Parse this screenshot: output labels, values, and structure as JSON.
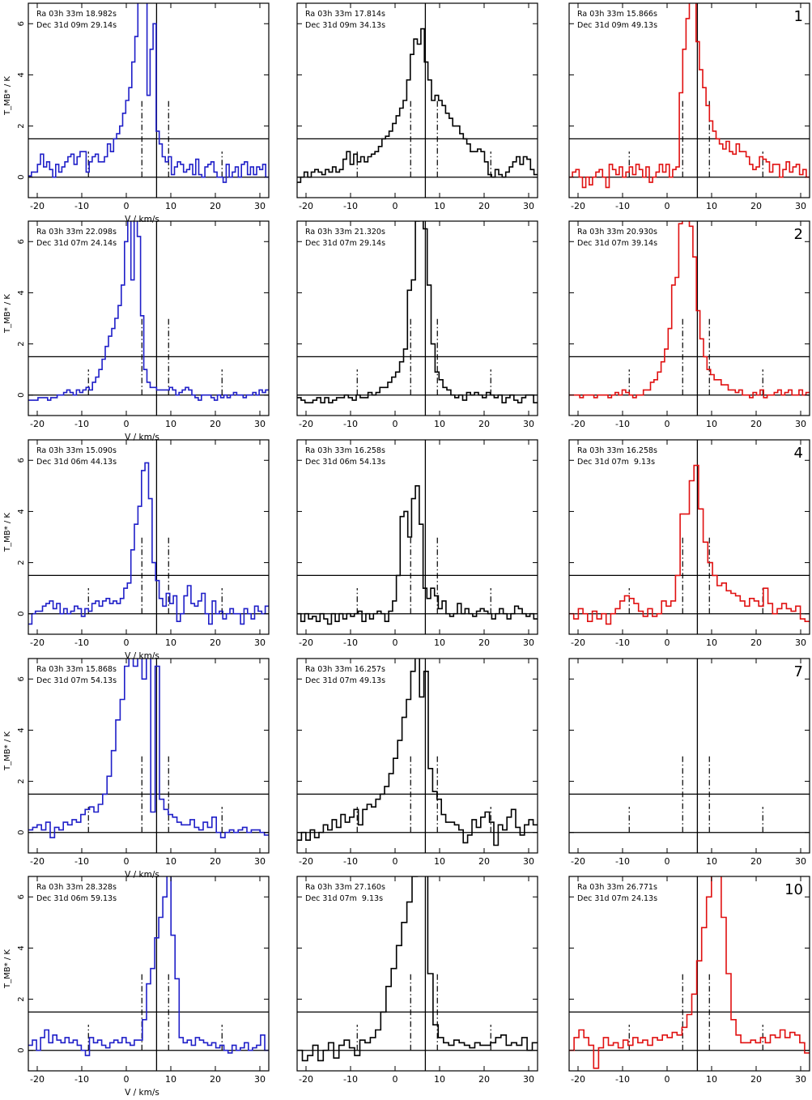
{
  "figure": {
    "xlabel": "V / km/s",
    "ylabel": "T_MB* / K",
    "colors": {
      "left": "#1f1fc8",
      "middle": "#000000",
      "right": "#e01010"
    }
  },
  "chart_data": {
    "type": "line",
    "step": true,
    "xlim": [
      -22,
      32
    ],
    "ylim": [
      -0.8,
      6.8
    ],
    "xticks": [
      -20,
      -10,
      0,
      10,
      20,
      30
    ],
    "yticks": [
      0,
      2,
      4,
      6
    ],
    "guides": {
      "hlines": [
        0,
        1.5
      ],
      "solid_vline": 6.8,
      "dashdot_vlines": [
        {
          "x": -8.5,
          "y": 1.0
        },
        {
          "x": 3.5,
          "y": 3.0
        },
        {
          "x": 9.5,
          "y": 3.0
        },
        {
          "x": 21.5,
          "y": 1.0
        }
      ]
    },
    "rows": [
      {
        "label": "1",
        "panels": [
          {
            "ra": "Ra 03h 33m 18.982s",
            "dec": "Dec 31d 09m 29.14s",
            "values": [
              0.05,
              0.2,
              0.2,
              0.5,
              0.9,
              0.4,
              0.6,
              0.3,
              0.0,
              0.5,
              0.2,
              0.4,
              0.6,
              0.8,
              0.9,
              0.5,
              0.8,
              1.0,
              1.0,
              0.2,
              0.6,
              0.8,
              0.9,
              0.6,
              0.6,
              0.8,
              1.3,
              1.0,
              1.5,
              1.7,
              2.0,
              2.5,
              3.0,
              3.5,
              4.5,
              5.5,
              7.3,
              7.3,
              7.0,
              3.2,
              5.0,
              6.0,
              1.8,
              1.3,
              0.8,
              0.6,
              0.8,
              0.1,
              0.4,
              0.6,
              0.5,
              0.2,
              0.3,
              0.5,
              0.1,
              0.7,
              0.1,
              0.0,
              0.4,
              0.5,
              0.6,
              0.2,
              0.0,
              0.0,
              -0.2,
              0.5,
              0.0,
              0.2,
              0.4,
              0.0,
              0.5,
              0.6,
              0.1,
              0.4,
              0.1,
              0.4,
              0.3,
              0.5,
              0.0
            ]
          },
          {
            "ra": "Ra 03h 33m 17.814s",
            "dec": "Dec 31d 09m 34.13s",
            "values": [
              -0.2,
              0.0,
              0.2,
              0.0,
              0.2,
              0.3,
              0.2,
              0.1,
              0.3,
              0.2,
              0.4,
              0.2,
              0.3,
              0.7,
              1.0,
              0.5,
              0.9,
              0.6,
              0.8,
              0.6,
              0.8,
              0.9,
              1.0,
              1.2,
              1.5,
              1.6,
              1.8,
              2.1,
              2.4,
              2.7,
              3.0,
              3.8,
              4.8,
              5.4,
              5.2,
              5.8,
              4.5,
              3.8,
              3.0,
              3.2,
              3.0,
              2.8,
              2.5,
              2.3,
              2.0,
              2.0,
              1.7,
              1.5,
              1.3,
              1.0,
              1.0,
              1.1,
              1.0,
              0.6,
              0.1,
              0.0,
              0.3,
              0.1,
              0.0,
              0.2,
              0.4,
              0.6,
              0.8,
              0.5,
              0.8,
              0.7,
              0.3,
              0.1
            ]
          },
          {
            "ra": "Ra 03h 33m 15.866s",
            "dec": "Dec 31d 09m 49.13s",
            "values": [
              0.0,
              0.2,
              0.3,
              0.0,
              -0.4,
              0.0,
              -0.3,
              0.0,
              0.2,
              0.3,
              0.0,
              -0.4,
              0.5,
              0.3,
              0.1,
              0.4,
              0.0,
              0.2,
              0.4,
              0.1,
              0.5,
              0.3,
              0.0,
              0.4,
              -0.2,
              0.0,
              0.2,
              0.5,
              0.2,
              0.5,
              0.0,
              0.3,
              0.4,
              3.3,
              5.0,
              6.2,
              7.2,
              7.5,
              5.3,
              4.2,
              3.5,
              2.8,
              2.2,
              1.8,
              1.5,
              1.3,
              1.1,
              1.4,
              1.0,
              0.9,
              1.3,
              1.0,
              1.0,
              0.8,
              0.5,
              0.3,
              0.4,
              0.8,
              0.7,
              0.6,
              0.2,
              0.5,
              0.5,
              0.0,
              0.3,
              0.6,
              0.2,
              0.4,
              0.5,
              0.1,
              0.3,
              0.0
            ]
          }
        ]
      },
      {
        "label": "2",
        "panels": [
          {
            "ra": "Ra 03h 33m 22.098s",
            "dec": "Dec 31d 07m 24.14s",
            "values": [
              -0.2,
              -0.2,
              -0.2,
              -0.1,
              -0.1,
              -0.1,
              -0.2,
              -0.1,
              -0.1,
              0.0,
              0.0,
              0.1,
              0.2,
              0.1,
              0.0,
              0.2,
              0.1,
              0.2,
              0.3,
              0.2,
              0.5,
              0.7,
              1.0,
              1.4,
              1.9,
              2.3,
              2.6,
              3.0,
              3.5,
              4.3,
              6.0,
              7.3,
              4.5,
              7.4,
              6.2,
              3.1,
              1.0,
              0.5,
              0.3,
              0.3,
              0.2,
              0.2,
              0.2,
              0.2,
              0.3,
              0.2,
              0.0,
              0.1,
              0.2,
              0.3,
              0.2,
              0.0,
              -0.1,
              -0.2,
              0.0,
              0.0,
              0.0,
              -0.1,
              -0.2,
              0.0,
              -0.1,
              0.0,
              -0.1,
              0.0,
              0.1,
              0.0,
              0.0,
              -0.1,
              0.0,
              0.0,
              0.1,
              0.0,
              0.2,
              0.1,
              0.2
            ]
          },
          {
            "ra": "Ra 03h 33m 21.320s",
            "dec": "Dec 31d 07m 29.14s",
            "values": [
              -0.1,
              -0.2,
              -0.3,
              -0.3,
              -0.2,
              -0.1,
              -0.3,
              -0.1,
              -0.3,
              -0.2,
              -0.1,
              -0.1,
              0.0,
              -0.1,
              -0.2,
              0.0,
              -0.1,
              -0.1,
              0.1,
              0.0,
              0.1,
              0.3,
              0.3,
              0.5,
              0.7,
              0.9,
              1.3,
              1.8,
              4.1,
              4.5,
              6.8,
              7.3,
              6.5,
              4.3,
              2.0,
              0.9,
              0.6,
              0.3,
              0.2,
              0.0,
              -0.1,
              0.0,
              -0.2,
              0.1,
              0.0,
              0.1,
              0.0,
              -0.1,
              0.1,
              0.0,
              -0.1,
              0.0,
              -0.3,
              -0.1,
              0.0,
              -0.2,
              -0.3,
              -0.1,
              0.0,
              0.0,
              -0.3
            ]
          },
          {
            "ra": "Ra 03h 33m 20.930s",
            "dec": "Dec 31d 07m 39.14s",
            "values": [
              0.0,
              0.0,
              0.0,
              -0.1,
              0.0,
              0.0,
              0.0,
              -0.1,
              0.0,
              0.0,
              0.0,
              -0.1,
              0.0,
              0.1,
              0.0,
              0.2,
              0.1,
              0.0,
              -0.1,
              0.0,
              0.0,
              0.2,
              0.2,
              0.5,
              0.6,
              0.9,
              1.3,
              1.8,
              2.6,
              4.3,
              4.6,
              6.7,
              7.4,
              7.3,
              6.6,
              5.4,
              3.3,
              2.2,
              1.5,
              1.0,
              0.8,
              0.6,
              0.6,
              0.4,
              0.4,
              0.2,
              0.2,
              0.1,
              0.2,
              0.0,
              0.0,
              -0.1,
              0.1,
              0.0,
              0.2,
              -0.1,
              0.0,
              0.0,
              0.1,
              0.2,
              0.0,
              0.1,
              0.2,
              0.0,
              0.0,
              0.2,
              0.0,
              0.1
            ]
          }
        ]
      },
      {
        "label": "4",
        "panels": [
          {
            "ra": "Ra 03h 33m 15.090s",
            "dec": "Dec 31d 06m 44.13s",
            "values": [
              -0.4,
              0.0,
              0.1,
              0.1,
              0.3,
              0.4,
              0.5,
              0.2,
              0.4,
              0.0,
              0.2,
              0.0,
              0.1,
              0.3,
              0.2,
              -0.1,
              0.2,
              0.1,
              0.4,
              0.5,
              0.3,
              0.5,
              0.6,
              0.4,
              0.5,
              0.4,
              0.6,
              1.0,
              1.2,
              2.5,
              3.5,
              4.2,
              5.6,
              5.9,
              4.5,
              2.0,
              1.3,
              0.6,
              0.3,
              0.8,
              0.4,
              0.7,
              -0.3,
              0.0,
              0.7,
              1.1,
              0.4,
              0.3,
              0.5,
              0.8,
              0.0,
              -0.4,
              0.5,
              0.0,
              0.1,
              -0.2,
              0.0,
              0.2,
              0.0,
              0.0,
              -0.4,
              0.2,
              0.0,
              -0.2,
              0.3,
              0.1,
              0.0,
              0.3
            ]
          },
          {
            "ra": "Ra 03h 33m 16.258s",
            "dec": "Dec 31d 06m 54.13s",
            "values": [
              0.0,
              -0.3,
              0.0,
              -0.2,
              -0.1,
              -0.3,
              0.0,
              -0.2,
              -0.4,
              0.0,
              -0.3,
              0.0,
              -0.2,
              0.0,
              -0.1,
              0.0,
              0.1,
              -0.3,
              0.0,
              -0.2,
              0.0,
              0.1,
              0.0,
              -0.3,
              0.1,
              0.5,
              1.5,
              3.8,
              4.0,
              3.0,
              4.5,
              5.0,
              3.5,
              1.0,
              0.6,
              1.0,
              0.7,
              0.2,
              0.5,
              0.0,
              -0.1,
              0.0,
              0.4,
              0.0,
              0.2,
              0.0,
              -0.1,
              0.1,
              0.2,
              0.1,
              0.0,
              -0.2,
              0.0,
              0.2,
              0.0,
              -0.2,
              0.0,
              0.3,
              0.2,
              0.0,
              -0.1,
              0.0,
              -0.2
            ]
          },
          {
            "ra": "Ra 03h 33m 16.258s",
            "dec": "Dec 31d 07m  9.13s",
            "values": [
              0.0,
              -0.2,
              0.2,
              0.0,
              -0.3,
              0.1,
              -0.2,
              0.0,
              -0.4,
              0.0,
              0.2,
              0.5,
              0.7,
              0.6,
              0.4,
              0.1,
              -0.1,
              0.2,
              -0.1,
              0.0,
              0.5,
              0.3,
              0.5,
              1.5,
              3.9,
              3.9,
              5.2,
              5.8,
              4.1,
              2.8,
              2.0,
              1.5,
              1.1,
              1.2,
              0.9,
              0.8,
              0.7,
              0.5,
              0.3,
              0.6,
              0.5,
              0.3,
              1.0,
              0.4,
              0.0,
              0.2,
              0.4,
              0.2,
              0.1,
              0.3,
              -0.2,
              -0.3
            ]
          }
        ]
      },
      {
        "label": "7",
        "panels": [
          {
            "ra": "Ra 03h 33m 15.868s",
            "dec": "Dec 31d 07m 54.13s",
            "values": [
              0.1,
              0.2,
              0.3,
              0.1,
              0.4,
              -0.2,
              0.2,
              0.1,
              0.4,
              0.3,
              0.5,
              0.4,
              0.7,
              0.9,
              1.0,
              0.8,
              1.1,
              1.5,
              2.2,
              3.2,
              4.4,
              5.2,
              6.5,
              7.0,
              6.5,
              7.5,
              6.0,
              7.5,
              0.8,
              6.5,
              1.3,
              0.9,
              0.7,
              0.6,
              0.4,
              0.3,
              0.3,
              0.5,
              0.2,
              0.1,
              0.4,
              0.2,
              0.6,
              0.0,
              -0.2,
              0.0,
              0.1,
              0.0,
              0.1,
              0.2,
              0.0,
              0.1,
              0.1,
              0.0,
              -0.1
            ]
          },
          {
            "ra": "Ra 03h 33m 16.257s",
            "dec": "Dec 31d 07m 49.13s",
            "values": [
              -0.3,
              0.0,
              -0.3,
              0.1,
              -0.2,
              0.0,
              0.3,
              0.1,
              0.5,
              0.2,
              0.7,
              0.4,
              0.6,
              0.9,
              0.3,
              0.9,
              1.1,
              1.0,
              1.3,
              1.5,
              1.8,
              2.3,
              2.9,
              3.6,
              4.5,
              5.2,
              6.3,
              7.2,
              5.3,
              6.3,
              2.5,
              1.6,
              1.3,
              0.7,
              0.4,
              0.4,
              0.3,
              0.1,
              -0.4,
              -0.1,
              0.5,
              0.2,
              0.6,
              0.8,
              0.4,
              -0.5,
              0.3,
              0.1,
              0.6,
              0.9,
              0.2,
              -0.1,
              0.3,
              0.5,
              0.3
            ]
          },
          {
            "ra": "",
            "dec": "",
            "values": []
          }
        ]
      },
      {
        "label": "10",
        "panels": [
          {
            "ra": "Ra 03h 33m 28.328s",
            "dec": "Dec 31d 06m 59.13s",
            "values": [
              0.2,
              0.4,
              0.0,
              0.5,
              0.8,
              0.3,
              0.6,
              0.4,
              0.3,
              0.5,
              0.3,
              0.4,
              0.2,
              0.0,
              -0.2,
              0.5,
              0.3,
              0.4,
              0.2,
              0.1,
              0.3,
              0.4,
              0.3,
              0.5,
              0.3,
              0.2,
              0.4,
              0.4,
              1.2,
              2.6,
              3.2,
              4.4,
              5.2,
              6.0,
              7.2,
              4.5,
              2.8,
              0.5,
              0.3,
              0.4,
              0.2,
              0.5,
              0.4,
              0.3,
              0.2,
              0.3,
              0.1,
              0.2,
              0.0,
              -0.1,
              0.2,
              0.0,
              0.1,
              0.3,
              0.0,
              0.1,
              0.2,
              0.6,
              0.0
            ]
          },
          {
            "ra": "Ra 03h 33m 27.160s",
            "dec": "Dec 31d 07m  9.13s",
            "values": [
              0.0,
              -0.4,
              -0.2,
              0.2,
              -0.4,
              0.0,
              0.3,
              -0.3,
              0.2,
              0.4,
              0.1,
              -0.2,
              0.4,
              0.3,
              0.5,
              0.8,
              1.5,
              2.5,
              3.2,
              4.1,
              5.0,
              5.8,
              6.8,
              7.3,
              7.5,
              3.0,
              1.0,
              0.5,
              0.3,
              0.2,
              0.4,
              0.3,
              0.2,
              0.1,
              0.3,
              0.2,
              0.2,
              0.3,
              0.5,
              0.6,
              0.2,
              0.3,
              0.2,
              0.5,
              0.0,
              0.3
            ]
          },
          {
            "ra": "Ra 03h 33m 26.771s",
            "dec": "Dec 31d 07m 24.13s",
            "values": [
              0.0,
              0.5,
              0.8,
              0.5,
              0.2,
              -0.7,
              0.1,
              0.5,
              0.2,
              0.3,
              0.1,
              0.4,
              0.2,
              0.5,
              0.3,
              0.4,
              0.2,
              0.5,
              0.4,
              0.6,
              0.5,
              0.7,
              0.6,
              0.9,
              1.4,
              2.2,
              3.5,
              4.8,
              6.0,
              7.2,
              7.5,
              5.2,
              3.0,
              1.2,
              0.6,
              0.3,
              0.3,
              0.4,
              0.3,
              0.5,
              0.3,
              0.6,
              0.5,
              0.8,
              0.5,
              0.7,
              0.6,
              0.3,
              -0.1
            ]
          }
        ]
      }
    ]
  }
}
